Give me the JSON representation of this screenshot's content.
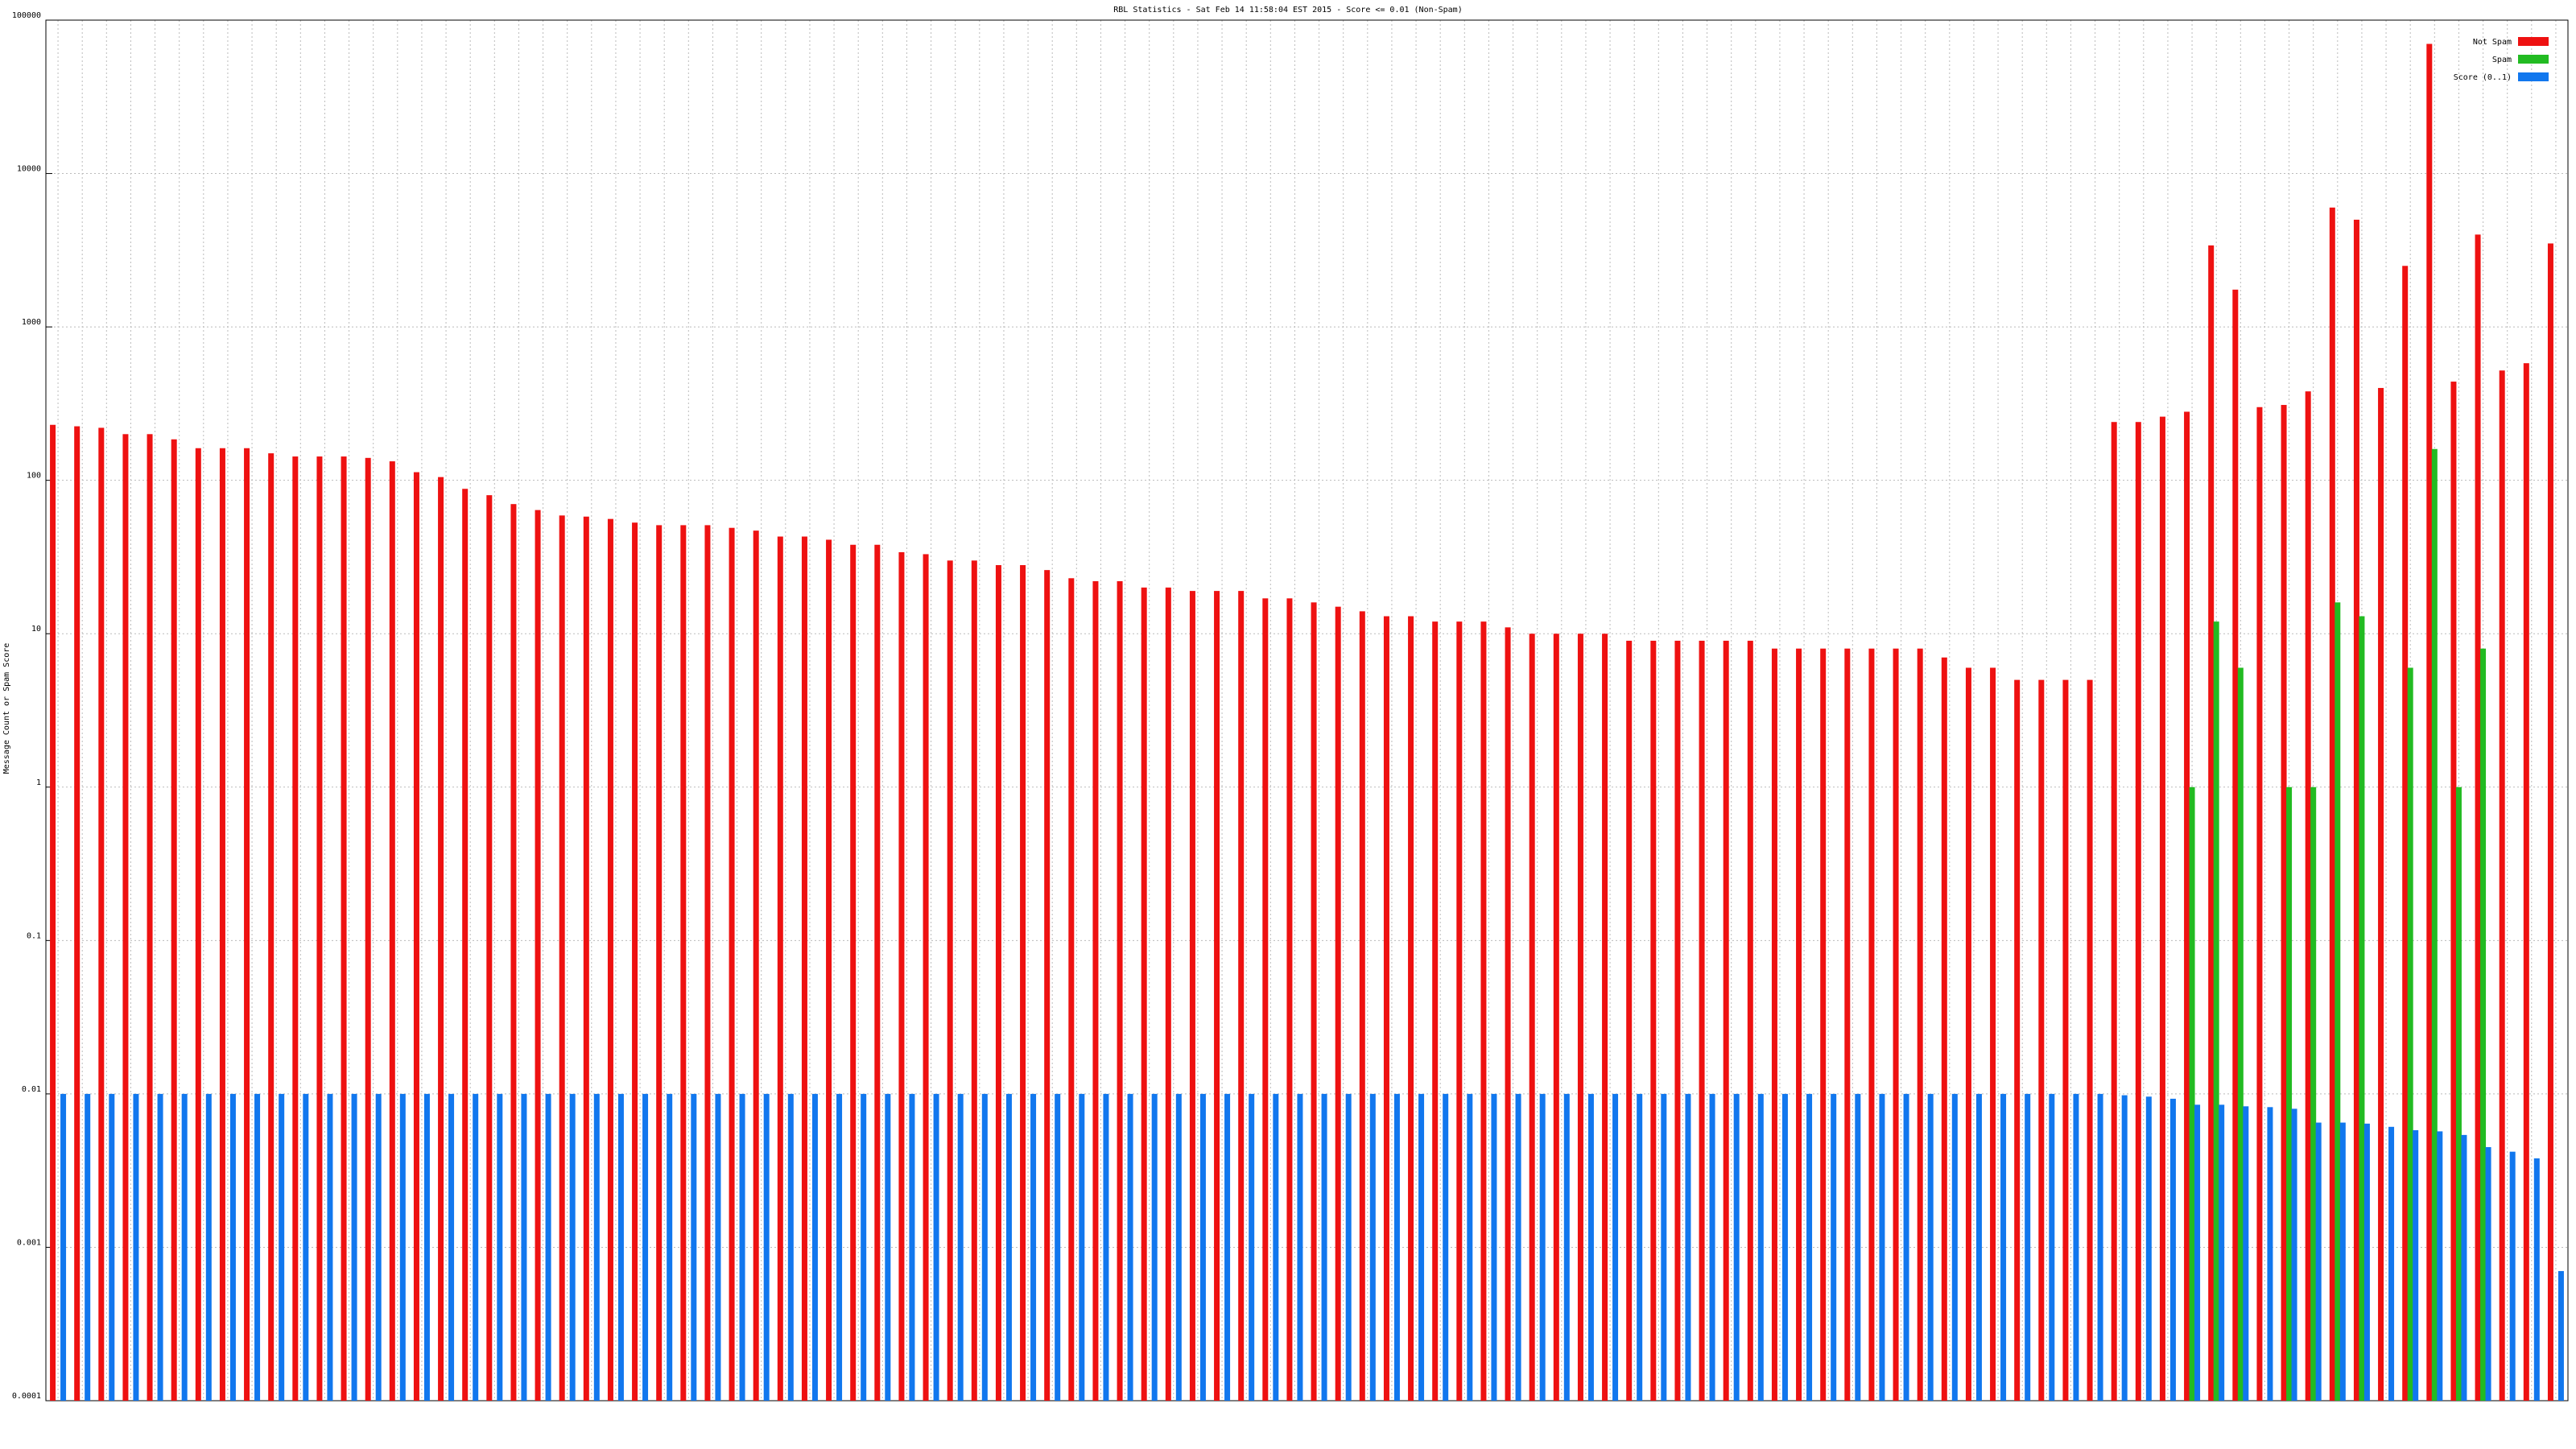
{
  "chart_data": {
    "type": "bar",
    "title": "RBL Statistics - Sat Feb 14 11:58:04 EST 2015 - Score <= 0.01 (Non-Spam)",
    "y_label": "Message Count or Spam Score",
    "log_scale": true,
    "grid": true,
    "legend": "top-right",
    "ylim": [
      0.0001,
      100000
    ],
    "yticks": [
      0.0001,
      0.001,
      0.01,
      0.1,
      1,
      10,
      100,
      1000,
      10000,
      100000
    ],
    "categories": [
      null,
      null,
      null,
      null,
      null,
      null,
      null,
      null,
      null,
      null,
      null,
      null,
      null,
      null,
      null,
      null,
      null,
      null,
      null,
      null,
      null,
      null,
      null,
      null,
      null,
      null,
      null,
      null,
      null,
      null,
      null,
      null,
      null,
      null,
      null,
      null,
      null,
      null,
      null,
      null,
      null,
      null,
      null,
      null,
      null,
      null,
      null,
      null,
      null,
      null,
      null,
      null,
      null,
      null,
      null,
      null,
      null,
      null,
      null,
      null,
      null,
      null,
      null,
      null,
      null,
      null,
      null,
      null,
      null,
      null,
      null,
      null,
      null,
      null,
      null,
      null,
      null,
      null,
      null,
      null,
      null,
      null,
      null,
      null,
      null,
      null,
      null,
      null,
      null,
      null,
      null,
      null,
      null,
      null,
      null,
      null,
      null,
      null,
      null,
      null,
      null,
      null,
      null,
      null
    ],
    "series": [
      {
        "name": "Not Spam",
        "color": "#ee1111",
        "values": [
          230,
          225,
          220,
          200,
          200,
          185,
          162,
          162,
          162,
          150,
          143,
          143,
          143,
          140,
          133,
          113,
          105,
          88,
          80,
          70,
          64,
          59,
          58,
          56,
          53,
          51,
          51,
          51,
          49,
          47,
          43,
          43,
          41,
          38,
          38,
          34,
          33,
          30,
          30,
          28,
          28,
          26,
          23,
          22,
          22,
          20,
          20,
          19,
          19,
          19,
          17,
          17,
          16,
          15,
          14,
          13,
          13,
          12,
          12,
          12,
          11,
          10,
          10,
          10,
          10,
          9,
          9,
          9,
          9,
          9,
          9,
          8,
          8,
          8,
          8,
          8,
          8,
          8,
          7,
          6,
          6,
          5,
          5,
          5,
          5,
          240,
          240,
          260,
          280,
          3400,
          1750,
          300,
          310,
          380,
          6000,
          5000,
          400,
          2500,
          70000,
          440,
          4000,
          520,
          580,
          3500
        ]
      },
      {
        "name": "Spam",
        "color": "#22bb22",
        "values": [
          null,
          null,
          null,
          null,
          null,
          null,
          null,
          null,
          null,
          null,
          null,
          null,
          null,
          null,
          null,
          null,
          null,
          null,
          null,
          null,
          null,
          null,
          null,
          null,
          null,
          null,
          null,
          null,
          null,
          null,
          null,
          null,
          null,
          null,
          null,
          null,
          null,
          null,
          null,
          null,
          null,
          null,
          null,
          null,
          null,
          null,
          null,
          null,
          null,
          null,
          null,
          null,
          null,
          null,
          null,
          null,
          null,
          null,
          null,
          null,
          null,
          null,
          null,
          null,
          null,
          null,
          null,
          null,
          null,
          null,
          null,
          null,
          null,
          null,
          null,
          null,
          null,
          null,
          null,
          null,
          null,
          null,
          null,
          null,
          null,
          null,
          null,
          null,
          1,
          12,
          6,
          null,
          1,
          1,
          16,
          13,
          null,
          6,
          160,
          1,
          8,
          null,
          null,
          null
        ]
      },
      {
        "name": "Score (0..1)",
        "color": "#1177ee",
        "values": [
          0.01,
          0.01,
          0.01,
          0.01,
          0.01,
          0.01,
          0.01,
          0.01,
          0.01,
          0.01,
          0.01,
          0.01,
          0.01,
          0.01,
          0.01,
          0.01,
          0.01,
          0.01,
          0.01,
          0.01,
          0.01,
          0.01,
          0.01,
          0.01,
          0.01,
          0.01,
          0.01,
          0.01,
          0.01,
          0.01,
          0.01,
          0.01,
          0.01,
          0.01,
          0.01,
          0.01,
          0.01,
          0.01,
          0.01,
          0.01,
          0.01,
          0.01,
          0.01,
          0.01,
          0.01,
          0.01,
          0.01,
          0.01,
          0.01,
          0.01,
          0.01,
          0.01,
          0.01,
          0.01,
          0.01,
          0.01,
          0.01,
          0.01,
          0.01,
          0.01,
          0.01,
          0.01,
          0.01,
          0.01,
          0.01,
          0.01,
          0.01,
          0.01,
          0.01,
          0.01,
          0.01,
          0.01,
          0.01,
          0.01,
          0.01,
          0.01,
          0.01,
          0.01,
          0.01,
          0.01,
          0.01,
          0.01,
          0.01,
          0.01,
          0.01,
          0.0098,
          0.0096,
          0.0093,
          0.0085,
          0.0085,
          0.0083,
          0.0082,
          0.008,
          0.0065,
          0.0065,
          0.0064,
          0.0061,
          0.0058,
          0.0057,
          0.0054,
          0.0045,
          0.0042,
          0.0038,
          0.0007
        ]
      }
    ]
  }
}
